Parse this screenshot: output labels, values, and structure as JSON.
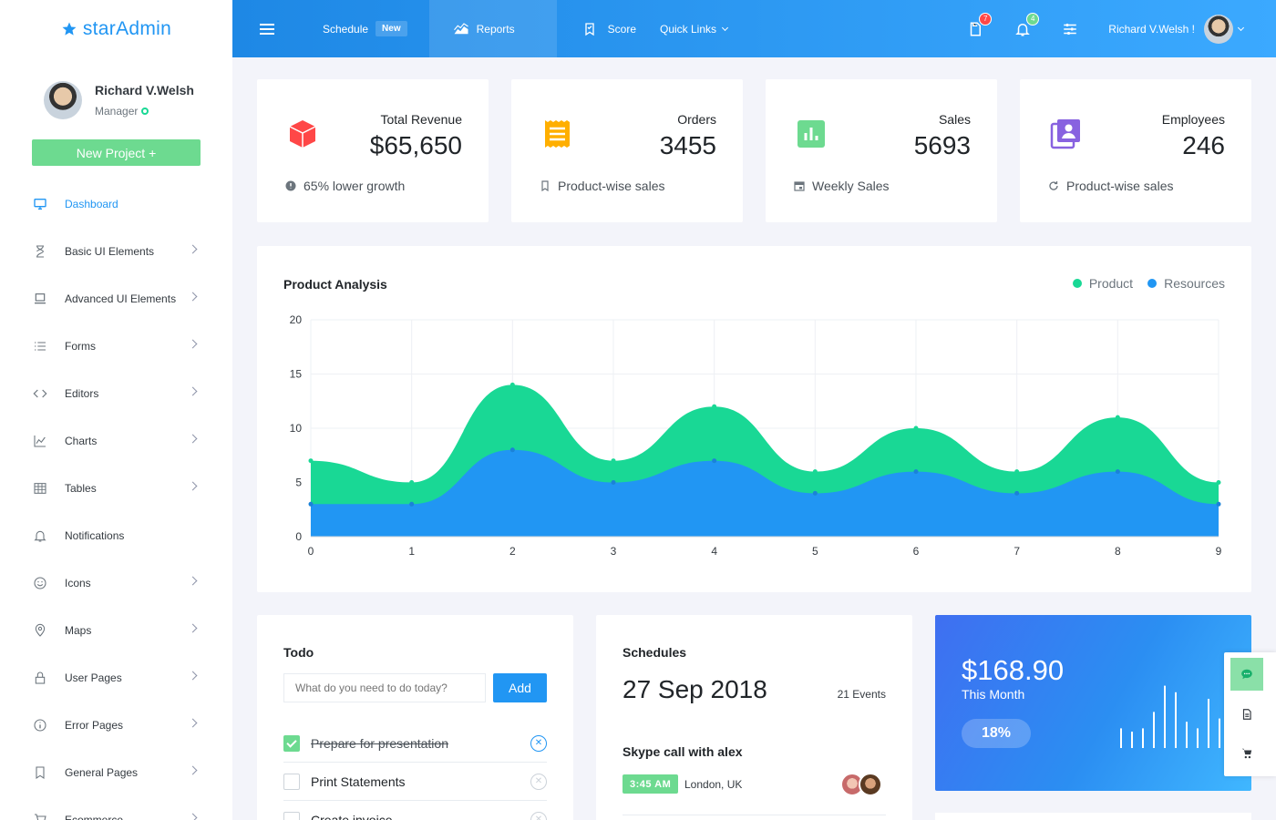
{
  "brand": {
    "prefix": "star",
    "suffix": "Admin"
  },
  "profile": {
    "name": "Richard V.Welsh",
    "role": "Manager"
  },
  "new_project_label": "New Project +",
  "nav": [
    {
      "label": "Dashboard",
      "icon": "monitor-icon",
      "active": true,
      "chevron": false
    },
    {
      "label": "Basic UI Elements",
      "icon": "hourglass-icon",
      "active": false,
      "chevron": true
    },
    {
      "label": "Advanced UI Elements",
      "icon": "laptop-icon",
      "active": false,
      "chevron": true
    },
    {
      "label": "Forms",
      "icon": "list-icon",
      "active": false,
      "chevron": true
    },
    {
      "label": "Editors",
      "icon": "code-icon",
      "active": false,
      "chevron": true
    },
    {
      "label": "Charts",
      "icon": "chart-line-icon",
      "active": false,
      "chevron": true
    },
    {
      "label": "Tables",
      "icon": "table-icon",
      "active": false,
      "chevron": true
    },
    {
      "label": "Notifications",
      "icon": "bell-icon",
      "active": false,
      "chevron": false
    },
    {
      "label": "Icons",
      "icon": "smiley-icon",
      "active": false,
      "chevron": true
    },
    {
      "label": "Maps",
      "icon": "map-pin-icon",
      "active": false,
      "chevron": true
    },
    {
      "label": "User Pages",
      "icon": "lock-icon",
      "active": false,
      "chevron": true
    },
    {
      "label": "Error Pages",
      "icon": "info-icon",
      "active": false,
      "chevron": true
    },
    {
      "label": "General Pages",
      "icon": "bookmark-icon",
      "active": false,
      "chevron": true
    },
    {
      "label": "Ecommerce",
      "icon": "cart-icon",
      "active": false,
      "chevron": true
    }
  ],
  "topbar": {
    "schedule": "Schedule",
    "new_badge": "New",
    "reports": "Reports",
    "score": "Score",
    "quick_links": "Quick Links",
    "file_badge": "7",
    "bell_badge": "4",
    "user": "Richard V.Welsh !"
  },
  "stats": [
    {
      "title": "Total Revenue",
      "value": "$65,650",
      "footer": "65% lower growth",
      "icon": "cube-icon",
      "color": "#ff4747"
    },
    {
      "title": "Orders",
      "value": "3455",
      "footer": "Product-wise sales",
      "icon": "receipt-icon",
      "color": "#ffaf00"
    },
    {
      "title": "Sales",
      "value": "5693",
      "footer": "Weekly Sales",
      "icon": "poll-box-icon",
      "color": "#6dda90"
    },
    {
      "title": "Employees",
      "value": "246",
      "footer": "Product-wise sales",
      "icon": "account-box-icon",
      "color": "#8862e0"
    }
  ],
  "chart_data": {
    "type": "area",
    "title": "Product Analysis",
    "x": [
      0,
      1,
      2,
      3,
      4,
      5,
      6,
      7,
      8,
      9
    ],
    "ylim": [
      0,
      20
    ],
    "yticks": [
      0,
      5,
      10,
      15,
      20
    ],
    "legend_position": "top-right",
    "grid": true,
    "stacked": true,
    "series": [
      {
        "name": "Product",
        "color": "#19d895",
        "values": [
          4,
          2,
          6,
          2,
          5,
          2,
          4,
          2,
          5,
          2
        ]
      },
      {
        "name": "Resources",
        "color": "#2196f3",
        "values": [
          3,
          3,
          8,
          5,
          7,
          4,
          6,
          4,
          6,
          3
        ]
      }
    ]
  },
  "todo": {
    "title": "Todo",
    "placeholder": "What do you need to do today?",
    "add_label": "Add",
    "items": [
      {
        "text": "Prepare for presentation",
        "done": true
      },
      {
        "text": "Print Statements",
        "done": false
      },
      {
        "text": "Create invoice",
        "done": false
      }
    ]
  },
  "schedules": {
    "title": "Schedules",
    "date": "27 Sep 2018",
    "count": "21 Events",
    "event_title": "Skype call with alex",
    "event_time": "3:45 AM",
    "event_location": "London, UK"
  },
  "revenue": {
    "amount": "$168.90",
    "label": "This Month",
    "percent": "18%",
    "bars": [
      0.3,
      0.25,
      0.3,
      0.55,
      0.95,
      0.85,
      0.4,
      0.3,
      0.75,
      0.45,
      0.65
    ]
  }
}
